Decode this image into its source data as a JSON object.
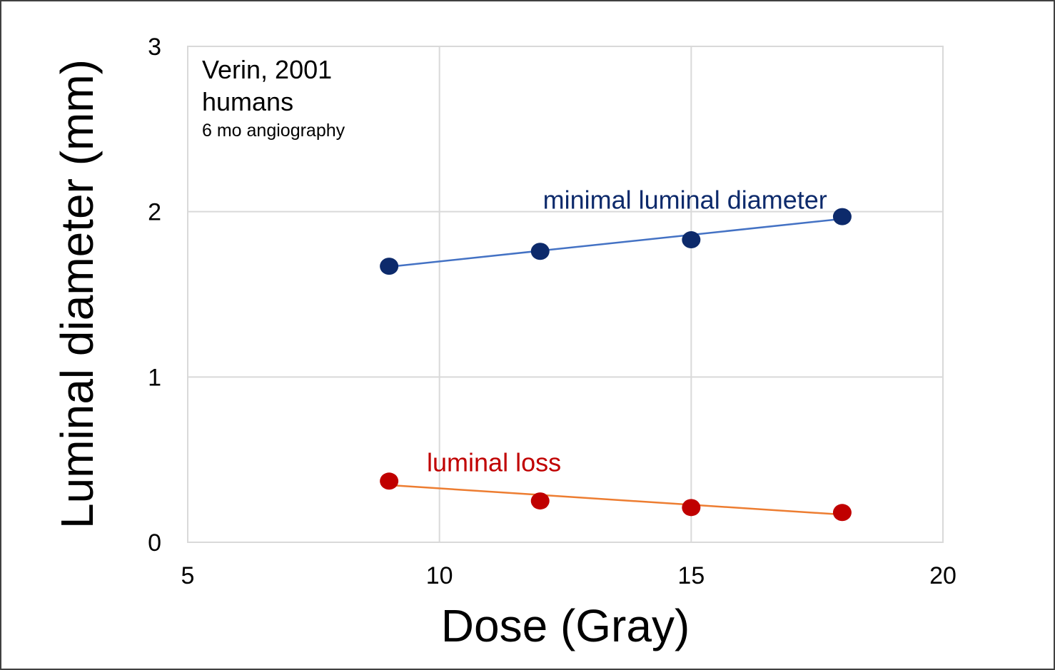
{
  "chart_data": {
    "type": "scatter",
    "xlabel": "Dose (Gray)",
    "ylabel": "Luminal diameter (mm)",
    "xlim": [
      5,
      20
    ],
    "ylim": [
      0,
      3
    ],
    "xticks": [
      "5",
      "10",
      "15",
      "20"
    ],
    "yticks": [
      "0",
      "1",
      "2",
      "3"
    ],
    "grid": true,
    "annotation": {
      "line1": "Verin, 2001",
      "line2": "humans",
      "line3": "6 mo angiography"
    },
    "series": [
      {
        "name": "minimal luminal diameter",
        "color": "#0d2a6b",
        "trendline_color": "#4472c4",
        "x": [
          9,
          12,
          15,
          18
        ],
        "y": [
          1.67,
          1.76,
          1.83,
          1.97
        ],
        "trendline": {
          "slope": 0.0322,
          "intercept": 1.377
        }
      },
      {
        "name": "luminal loss",
        "color": "#c00000",
        "trendline_color": "#ed7d31",
        "x": [
          9,
          12,
          15,
          18
        ],
        "y": [
          0.37,
          0.25,
          0.21,
          0.18
        ],
        "trendline": {
          "slope": -0.0198,
          "intercept": 0.524
        }
      }
    ]
  }
}
